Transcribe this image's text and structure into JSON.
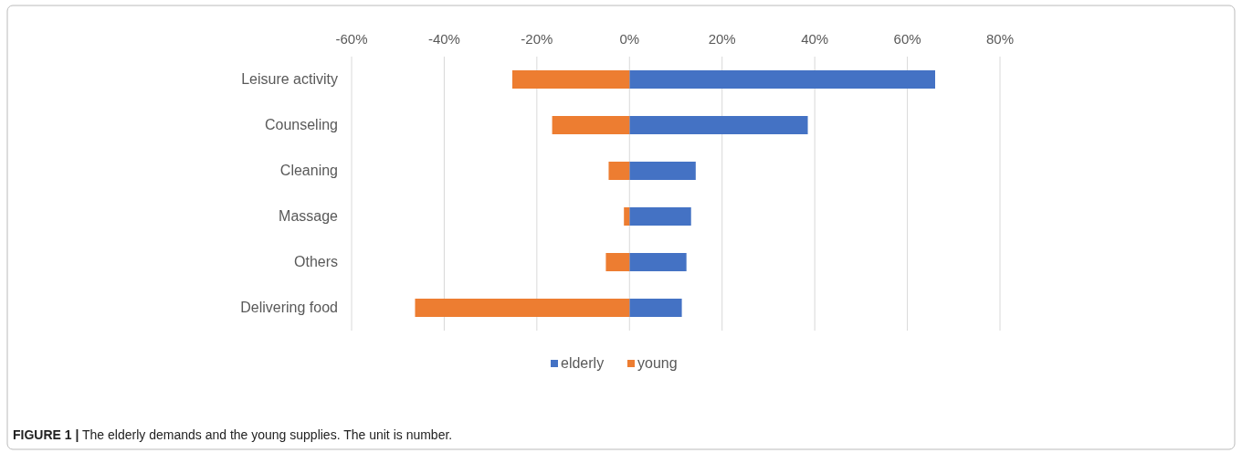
{
  "chart_data": {
    "type": "bar",
    "orientation": "horizontal",
    "categories": [
      "Leisure activity",
      "Counseling",
      "Cleaning",
      "Massage",
      "Others",
      "Delivering food"
    ],
    "series": [
      {
        "name": "elderly",
        "color": "#4472c4",
        "values": [
          66.0,
          38.5,
          14.3,
          13.3,
          12.3,
          11.3
        ]
      },
      {
        "name": "young",
        "color": "#ed7d31",
        "values": [
          -25.3,
          -16.7,
          -4.5,
          -1.2,
          -5.1,
          -46.3
        ]
      }
    ],
    "xlim": [
      -60,
      80
    ],
    "xticks": [
      {
        "value": -60,
        "label": "-60%"
      },
      {
        "value": -40,
        "label": "-40%"
      },
      {
        "value": -20,
        "label": "-20%"
      },
      {
        "value": 0,
        "label": "0%"
      },
      {
        "value": 20,
        "label": "20%"
      },
      {
        "value": 40,
        "label": "40%"
      },
      {
        "value": 60,
        "label": "60%"
      },
      {
        "value": 80,
        "label": "80%"
      }
    ],
    "stacked": true,
    "grid": "x",
    "legend": "bottom",
    "annotations": [
      "FIGURE 1 | The elderly demands and the young supplies. The unit is number."
    ]
  }
}
